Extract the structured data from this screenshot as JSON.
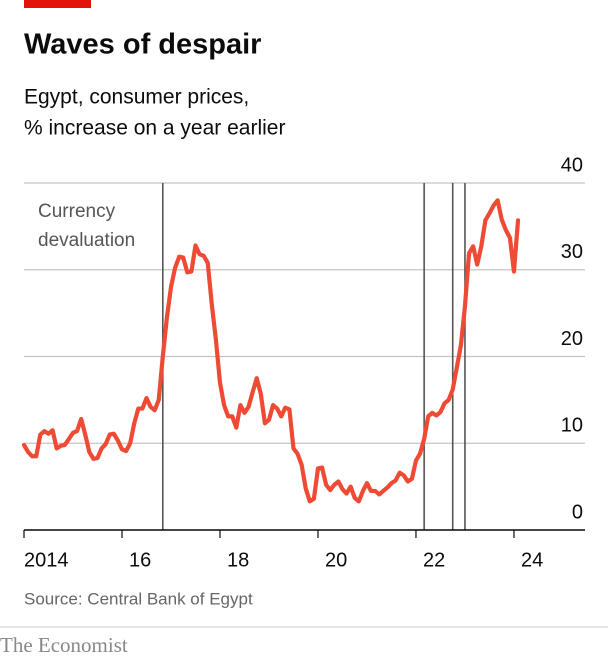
{
  "chart_data": {
    "type": "line",
    "title": "Waves of despair",
    "subtitle": [
      "Egypt, consumer prices,",
      "% increase on a year earlier"
    ],
    "annotation": [
      "Currency",
      "devaluation"
    ],
    "source": "Source: Central Bank of Egypt",
    "brand": "The Economist",
    "xlim": [
      2014,
      2025.45
    ],
    "ylim": [
      0,
      40
    ],
    "xticks": [
      {
        "value": 2014,
        "label": "2014"
      },
      {
        "value": 2016,
        "label": "16"
      },
      {
        "value": 2018,
        "label": "18"
      },
      {
        "value": 2020,
        "label": "20"
      },
      {
        "value": 2022,
        "label": "22"
      },
      {
        "value": 2024,
        "label": "24"
      }
    ],
    "yticks": [
      0,
      10,
      20,
      30,
      40
    ],
    "grid": true,
    "devaluations": [
      2016.833,
      2022.167,
      2022.75,
      2023
    ],
    "x": [
      2014,
      2014.083,
      2014.167,
      2014.25,
      2014.333,
      2014.417,
      2014.5,
      2014.583,
      2014.667,
      2014.75,
      2014.833,
      2014.917,
      2015,
      2015.083,
      2015.167,
      2015.25,
      2015.333,
      2015.417,
      2015.5,
      2015.583,
      2015.667,
      2015.75,
      2015.833,
      2015.917,
      2016,
      2016.083,
      2016.167,
      2016.25,
      2016.333,
      2016.417,
      2016.5,
      2016.583,
      2016.667,
      2016.75,
      2016.833,
      2016.917,
      2017,
      2017.083,
      2017.167,
      2017.25,
      2017.333,
      2017.417,
      2017.5,
      2017.583,
      2017.667,
      2017.75,
      2017.833,
      2017.917,
      2018,
      2018.083,
      2018.167,
      2018.25,
      2018.333,
      2018.417,
      2018.5,
      2018.583,
      2018.667,
      2018.75,
      2018.833,
      2018.917,
      2019,
      2019.083,
      2019.167,
      2019.25,
      2019.333,
      2019.417,
      2019.5,
      2019.583,
      2019.667,
      2019.75,
      2019.833,
      2019.917,
      2020,
      2020.083,
      2020.167,
      2020.25,
      2020.333,
      2020.417,
      2020.5,
      2020.583,
      2020.667,
      2020.75,
      2020.833,
      2020.917,
      2021,
      2021.083,
      2021.167,
      2021.25,
      2021.333,
      2021.417,
      2021.5,
      2021.583,
      2021.667,
      2021.75,
      2021.833,
      2021.917,
      2022,
      2022.083,
      2022.167,
      2022.25,
      2022.333,
      2022.417,
      2022.5,
      2022.583,
      2022.667,
      2022.75,
      2022.833,
      2022.917,
      2023,
      2023.083,
      2023.167,
      2023.25,
      2023.333,
      2023.417,
      2023.5,
      2023.583,
      2023.667,
      2023.75,
      2023.833,
      2023.917,
      2024,
      2024.083
    ],
    "series": [
      {
        "name": "Egypt consumer prices",
        "color": "#ee4a34",
        "values": [
          9.8,
          9.0,
          8.5,
          8.5,
          11.0,
          11.4,
          11.1,
          11.5,
          9.4,
          9.7,
          9.8,
          10.5,
          11.2,
          11.4,
          12.8,
          11.0,
          9.0,
          8.2,
          8.3,
          9.4,
          9.9,
          11.0,
          11.1,
          10.3,
          9.3,
          9.1,
          10.0,
          12.3,
          14.0,
          14.0,
          15.2,
          14.2,
          13.8,
          15.0,
          20.0,
          24.5,
          28.0,
          30.2,
          31.5,
          31.4,
          29.7,
          29.8,
          32.8,
          31.8,
          31.6,
          30.8,
          26.0,
          21.9,
          17.0,
          14.4,
          13.1,
          13.1,
          11.8,
          14.4,
          13.5,
          14.2,
          15.9,
          17.5,
          15.7,
          12.3,
          12.7,
          14.4,
          14.0,
          13.1,
          14.1,
          13.9,
          9.4,
          8.8,
          7.5,
          4.8,
          3.3,
          3.6,
          7.1,
          7.2,
          5.2,
          4.6,
          5.2,
          5.6,
          4.7,
          4.2,
          5.0,
          3.7,
          3.3,
          4.5,
          5.4,
          4.5,
          4.5,
          4.1,
          4.5,
          4.9,
          5.4,
          5.7,
          6.6,
          6.3,
          5.6,
          5.9,
          8.0,
          8.8,
          10.5,
          13.1,
          13.5,
          13.2,
          13.6,
          14.6,
          15.0,
          16.2,
          18.7,
          21.3,
          25.8,
          31.9,
          32.7,
          30.6,
          32.7,
          35.7,
          36.5,
          37.4,
          38.0,
          35.8,
          34.6,
          33.7,
          29.8,
          35.7
        ]
      }
    ]
  }
}
